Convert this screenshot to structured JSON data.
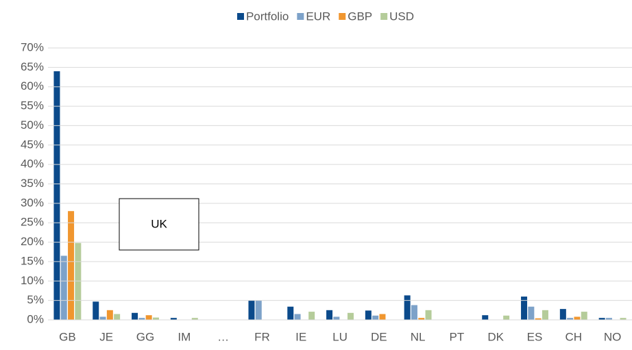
{
  "chart_data": {
    "type": "bar",
    "categories": [
      "GB",
      "JE",
      "GG",
      "IM",
      "…",
      "FR",
      "IE",
      "LU",
      "DE",
      "NL",
      "PT",
      "DK",
      "ES",
      "CH",
      "NO"
    ],
    "series": [
      {
        "name": "Portfolio",
        "color": "#0b4a8b",
        "values": [
          64,
          4.7,
          1.8,
          0.5,
          0,
          5,
          3.4,
          2.5,
          2.4,
          6.3,
          0,
          1.2,
          6,
          2.8,
          0.5
        ]
      },
      {
        "name": "EUR",
        "color": "#7da2c9",
        "values": [
          16.5,
          0.8,
          0.5,
          0,
          0,
          5,
          1.5,
          0.8,
          1.1,
          3.8,
          0,
          0,
          3.4,
          0.5,
          0.5
        ]
      },
      {
        "name": "GBP",
        "color": "#f0962f",
        "values": [
          28,
          2.5,
          1.2,
          0,
          0,
          0,
          0,
          0,
          1.5,
          0.5,
          0,
          0,
          0.4,
          0.8,
          0
        ]
      },
      {
        "name": "USD",
        "color": "#b5cc9a",
        "values": [
          19.8,
          1.5,
          0.6,
          0.5,
          0,
          0,
          2.1,
          1.8,
          0,
          2.5,
          0,
          1.1,
          2.5,
          2.1,
          0.5
        ]
      }
    ],
    "ylim": [
      0,
      70
    ],
    "yticks": [
      {
        "value": 0,
        "label": "0%"
      },
      {
        "value": 5,
        "label": "5%"
      },
      {
        "value": 10,
        "label": "10%"
      },
      {
        "value": 15,
        "label": "15%"
      },
      {
        "value": 20,
        "label": "20%"
      },
      {
        "value": 25,
        "label": "25%"
      },
      {
        "value": 30,
        "label": "30%"
      },
      {
        "value": 35,
        "label": "35%"
      },
      {
        "value": 40,
        "label": "40%"
      },
      {
        "value": 45,
        "label": "45%"
      },
      {
        "value": 50,
        "label": "50%"
      },
      {
        "value": 55,
        "label": "55%"
      },
      {
        "value": 60,
        "label": "60%"
      },
      {
        "value": 65,
        "label": "65%"
      },
      {
        "value": 70,
        "label": "70%"
      }
    ],
    "grid": true,
    "legend": "top",
    "annotations": [
      "UK"
    ]
  }
}
